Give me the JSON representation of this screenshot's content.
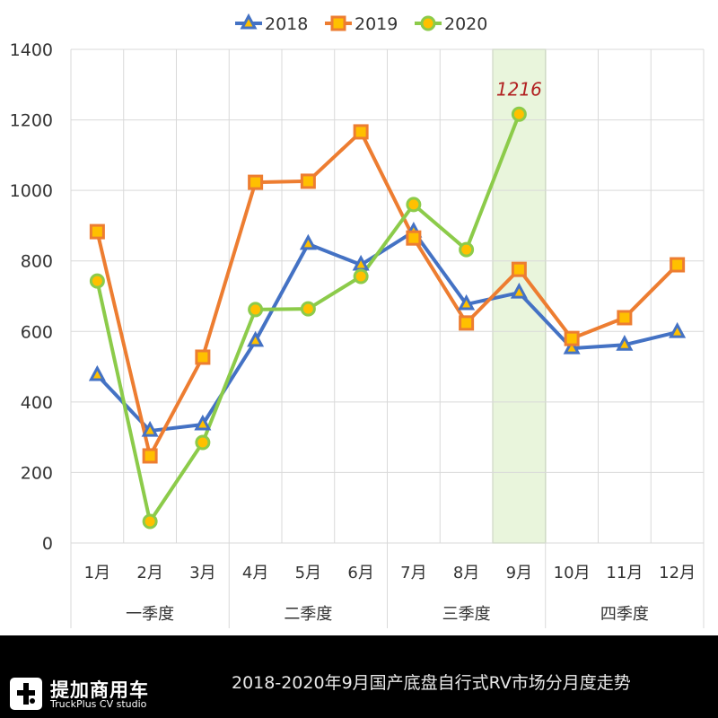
{
  "chart_data": {
    "type": "line",
    "categories": [
      "1月",
      "2月",
      "3月",
      "4月",
      "5月",
      "6月",
      "7月",
      "8月",
      "9月",
      "10月",
      "11月",
      "12月"
    ],
    "groups": [
      {
        "label": "一季度",
        "months": 3
      },
      {
        "label": "二季度",
        "months": 3
      },
      {
        "label": "三季度",
        "months": 3
      },
      {
        "label": "四季度",
        "months": 3
      }
    ],
    "series": [
      {
        "name": "2018",
        "color": "#4472C4",
        "marker": "triangle",
        "values": [
          476,
          318,
          336,
          573,
          848,
          789,
          883,
          677,
          710,
          552,
          562,
          598
        ]
      },
      {
        "name": "2019",
        "color": "#ED7D31",
        "marker": "square",
        "values": [
          883,
          247,
          527,
          1023,
          1026,
          1166,
          865,
          624,
          776,
          580,
          639,
          789
        ]
      },
      {
        "name": "2020",
        "color": "#8CCB4A",
        "marker": "circle",
        "values": [
          743,
          61,
          285,
          662,
          664,
          756,
          960,
          832,
          1216,
          null,
          null,
          null
        ]
      }
    ],
    "marker_fill": "#FFC000",
    "highlight": {
      "category": "9月",
      "color": "#E9F5DC"
    },
    "annotation": {
      "text": "1216",
      "category": "9月",
      "series": "2020",
      "color": "#B22222"
    },
    "ylim": [
      0,
      1400
    ],
    "yticks": [
      0,
      200,
      400,
      600,
      800,
      1000,
      1200,
      1400
    ],
    "grid": true,
    "legend": "top"
  },
  "footer": {
    "logo_cn": "提加商用车",
    "logo_en": "TruckPlus CV studio",
    "title": "2018-2020年9月国产底盘自行式RV市场分月度走势"
  }
}
